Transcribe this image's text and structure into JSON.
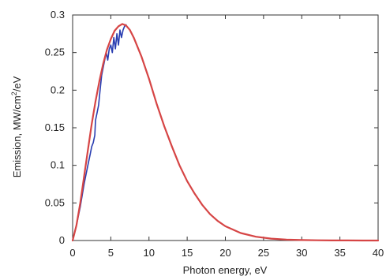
{
  "chart_data": {
    "type": "line",
    "title": "",
    "xlabel": "Photon energy, eV",
    "ylabel_parts": {
      "before": "Emission, MW/cm",
      "sup": "2",
      "after": "/eV"
    },
    "xlim": [
      0,
      40
    ],
    "ylim": [
      0,
      0.3
    ],
    "xticks": [
      "0",
      "5",
      "10",
      "15",
      "20",
      "25",
      "30",
      "35",
      "40"
    ],
    "yticks": [
      "0",
      "0.05",
      "0.1",
      "0.15",
      "0.2",
      "0.25",
      "0.3"
    ],
    "grid": false,
    "legend": "none",
    "series": [
      {
        "color": "#2a3eb1",
        "x": [
          0,
          0.5,
          1,
          1.5,
          2,
          2.3,
          2.5,
          2.7,
          2.9,
          3.0,
          3.2,
          3.4,
          3.6,
          3.8,
          4.0,
          4.2,
          4.4,
          4.6,
          4.8,
          5.0,
          5.2,
          5.4,
          5.6,
          5.8,
          6.0,
          6.2,
          6.4,
          6.6,
          6.8,
          7.0
        ],
        "y": [
          0,
          0.02,
          0.045,
          0.075,
          0.1,
          0.115,
          0.125,
          0.13,
          0.14,
          0.16,
          0.17,
          0.18,
          0.2,
          0.22,
          0.23,
          0.24,
          0.25,
          0.24,
          0.255,
          0.26,
          0.25,
          0.27,
          0.255,
          0.275,
          0.26,
          0.28,
          0.27,
          0.28,
          0.285,
          0.287
        ]
      },
      {
        "color": "#d64545",
        "x": [
          0,
          0.5,
          1,
          1.5,
          2,
          2.5,
          3,
          3.5,
          4,
          4.5,
          5,
          5.5,
          6,
          6.5,
          7,
          7.5,
          8,
          9,
          10,
          11,
          12,
          13,
          14,
          15,
          16,
          17,
          18,
          19,
          20,
          22,
          24,
          26,
          28,
          30,
          32,
          34,
          36,
          38,
          40
        ],
        "y": [
          0,
          0.02,
          0.05,
          0.085,
          0.12,
          0.155,
          0.185,
          0.212,
          0.235,
          0.254,
          0.268,
          0.279,
          0.285,
          0.288,
          0.286,
          0.28,
          0.27,
          0.245,
          0.215,
          0.182,
          0.152,
          0.125,
          0.1,
          0.079,
          0.062,
          0.047,
          0.035,
          0.026,
          0.019,
          0.01,
          0.005,
          0.0025,
          0.0012,
          0.0006,
          0.0003,
          0.00015,
          8e-05,
          4e-05,
          2e-05
        ]
      }
    ]
  }
}
